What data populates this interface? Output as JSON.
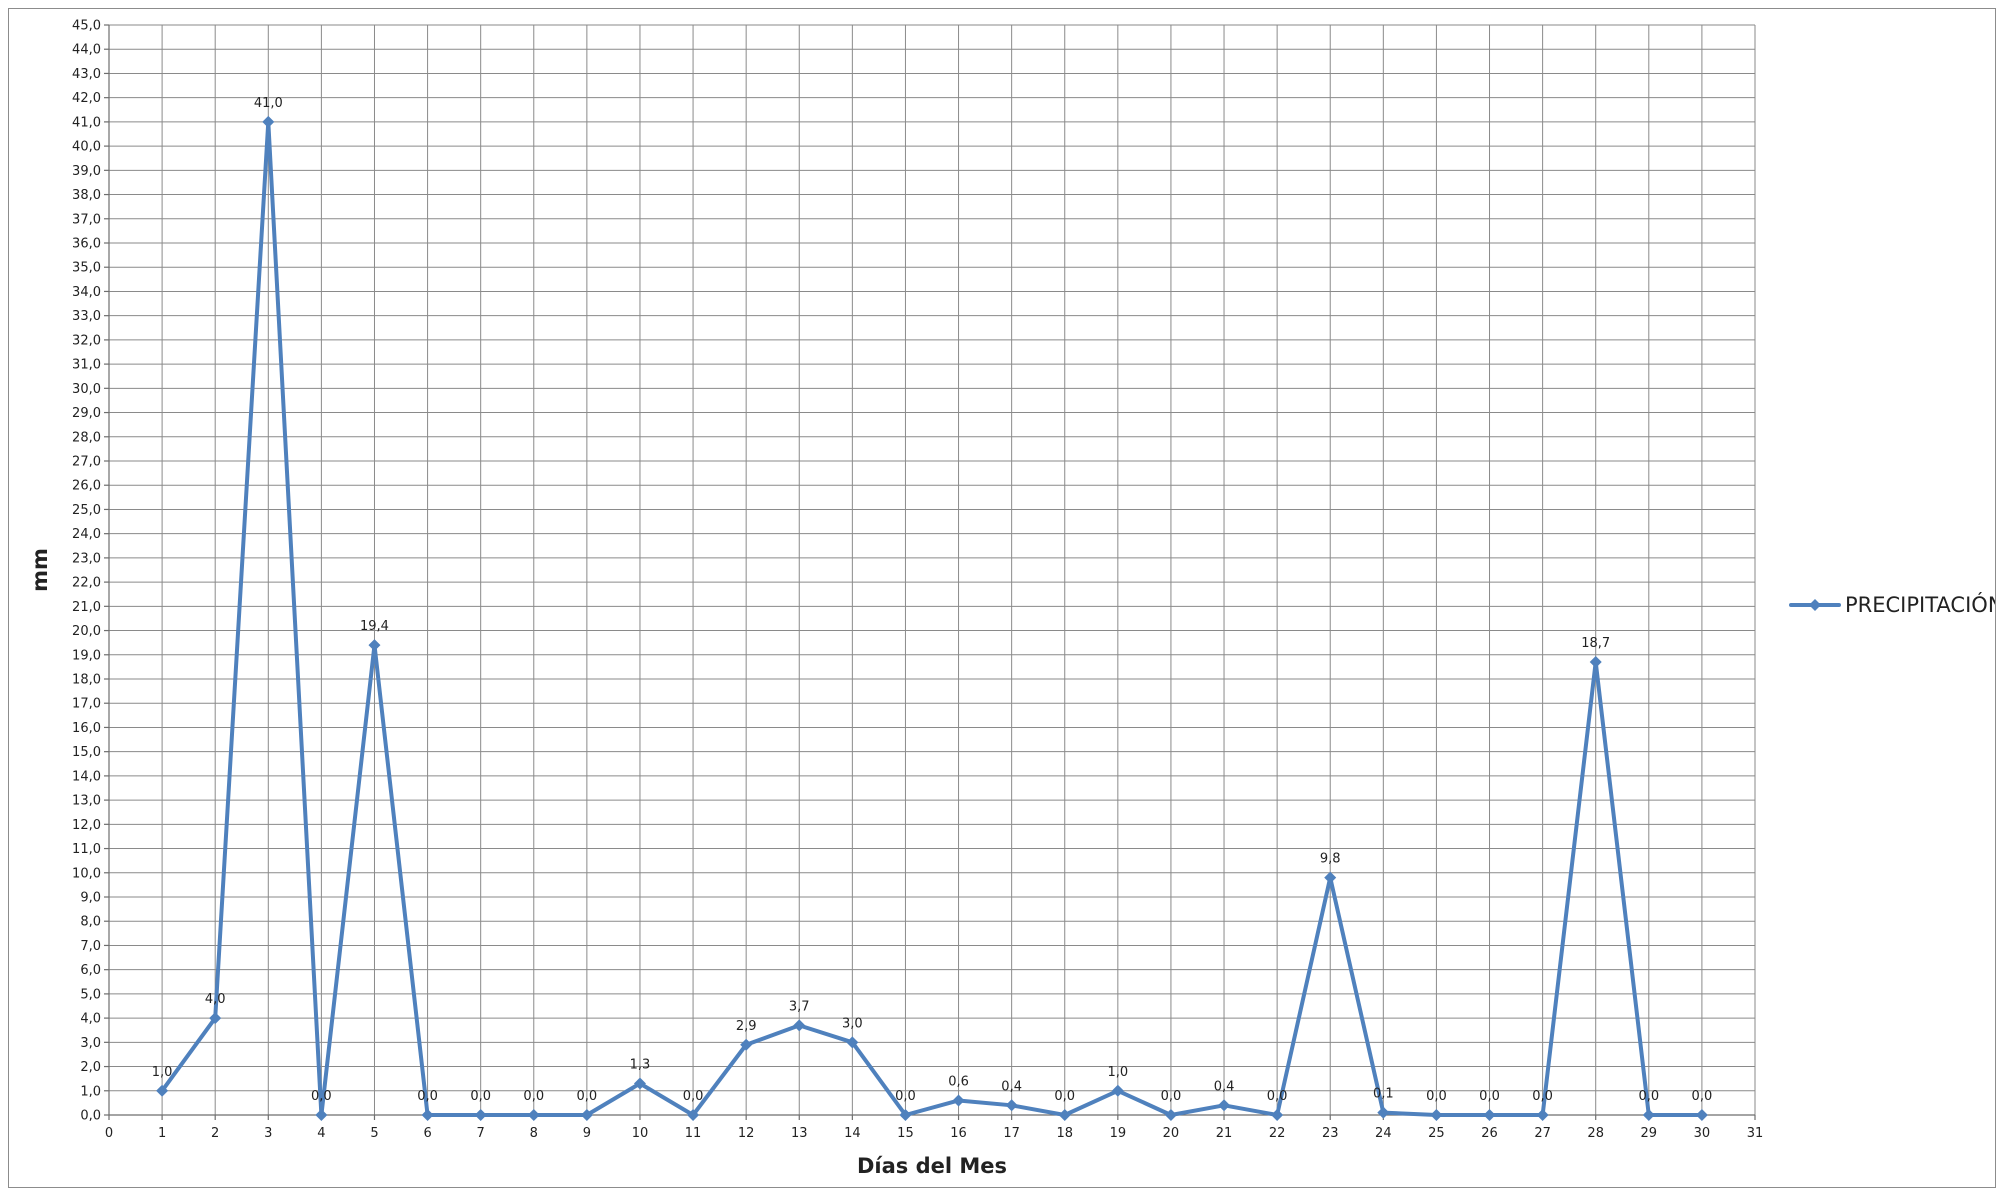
{
  "chart_data": {
    "type": "line",
    "title": "",
    "xlabel": "Días del Mes",
    "ylabel": "mm",
    "xlim": [
      0,
      31
    ],
    "ylim": [
      0,
      45
    ],
    "x_ticks": [
      "0",
      "1",
      "2",
      "3",
      "4",
      "5",
      "6",
      "7",
      "8",
      "9",
      "10",
      "11",
      "12",
      "13",
      "14",
      "15",
      "16",
      "17",
      "18",
      "19",
      "20",
      "21",
      "22",
      "23",
      "24",
      "25",
      "26",
      "27",
      "28",
      "29",
      "30",
      "31"
    ],
    "y_ticks": [
      "0,0",
      "1,0",
      "2,0",
      "3,0",
      "4,0",
      "5,0",
      "6,0",
      "7,0",
      "8,0",
      "9,0",
      "10,0",
      "11,0",
      "12,0",
      "13,0",
      "14,0",
      "15,0",
      "16,0",
      "17,0",
      "18,0",
      "19,0",
      "20,0",
      "21,0",
      "22,0",
      "23,0",
      "24,0",
      "25,0",
      "26,0",
      "27,0",
      "28,0",
      "29,0",
      "30,0",
      "31,0",
      "32,0",
      "33,0",
      "34,0",
      "35,0",
      "36,0",
      "37,0",
      "38,0",
      "39,0",
      "40,0",
      "41,0",
      "42,0",
      "43,0",
      "44,0",
      "45,0"
    ],
    "grid": true,
    "legend_position": "right",
    "series": [
      {
        "name": "PRECIPITACIÓN",
        "color": "#4F81BD",
        "marker": "diamond",
        "x": [
          1,
          2,
          3,
          4,
          5,
          6,
          7,
          8,
          9,
          10,
          11,
          12,
          13,
          14,
          15,
          16,
          17,
          18,
          19,
          20,
          21,
          22,
          23,
          24,
          25,
          26,
          27,
          28,
          29,
          30
        ],
        "values": [
          1.0,
          4.0,
          41.0,
          0.0,
          19.4,
          0.0,
          0.0,
          0.0,
          0.0,
          1.3,
          0.0,
          2.9,
          3.7,
          3.0,
          0.0,
          0.6,
          0.4,
          0.0,
          1.0,
          0.0,
          0.4,
          0.0,
          9.8,
          0.1,
          0.0,
          0.0,
          0.0,
          18.7,
          0.0,
          0.0
        ],
        "data_labels": [
          "1,0",
          "4,0",
          "41,0",
          "0,0",
          "19,4",
          "0,0",
          "0,0",
          "0,0",
          "0,0",
          "1,3",
          "0,0",
          "2,9",
          "3,7",
          "3,0",
          "0,0",
          "0,6",
          "0,4",
          "0,0",
          "1,0",
          "0,0",
          "0,4",
          "0,0",
          "9,8",
          "0,1",
          "0,0",
          "0,0",
          "0,0",
          "18,7",
          "0,0",
          "0,0"
        ]
      }
    ]
  }
}
